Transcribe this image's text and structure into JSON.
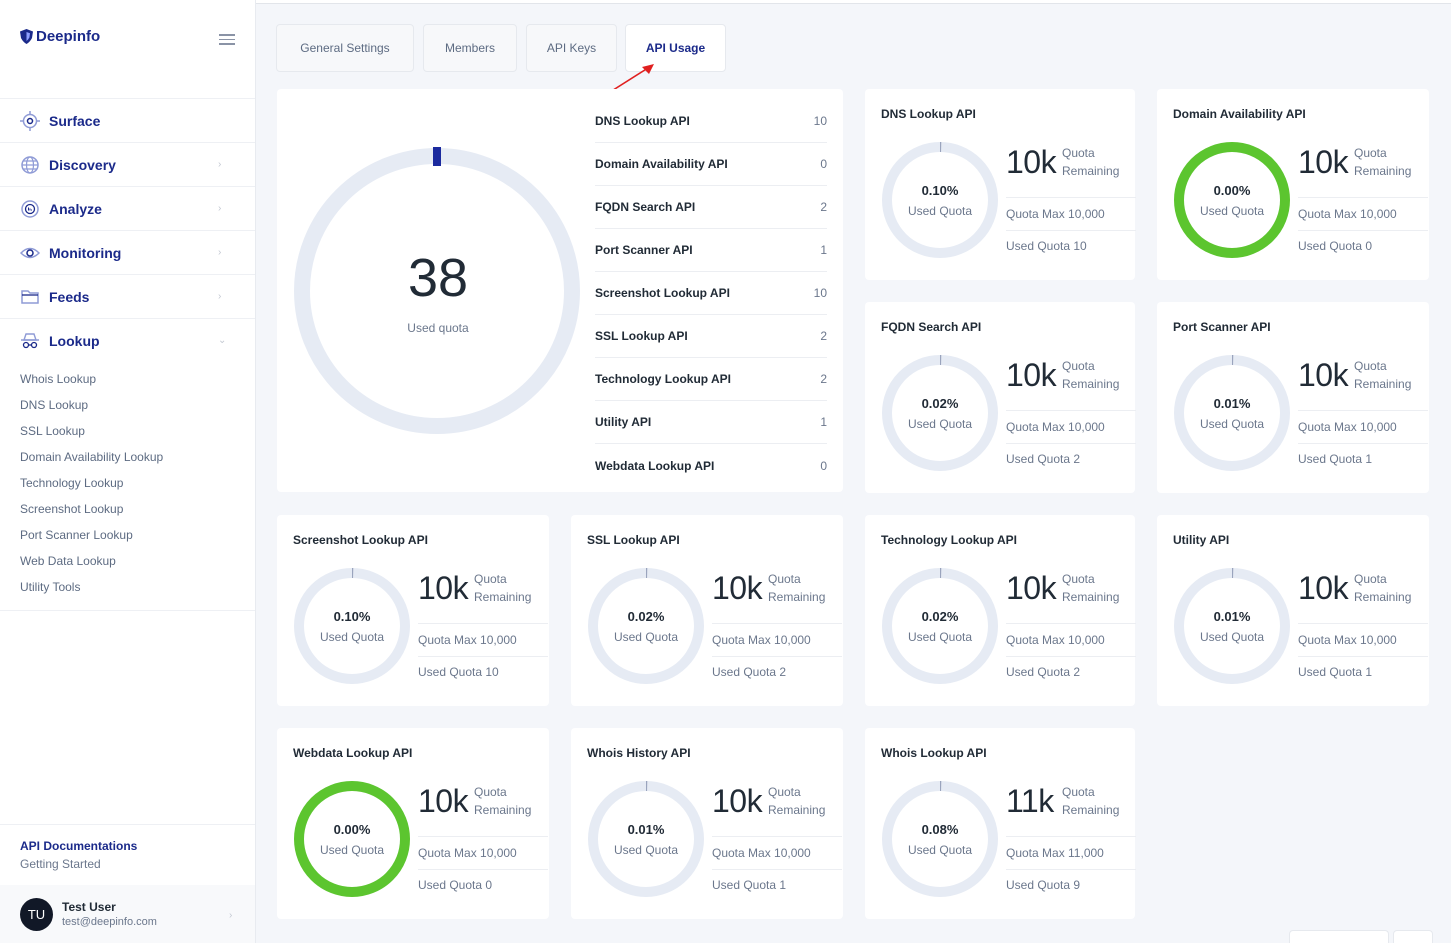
{
  "brand": {
    "name": "Deepinfo"
  },
  "nav": {
    "items": [
      {
        "label": "Surface",
        "icon": "target-icon"
      },
      {
        "label": "Discovery",
        "icon": "globe-icon"
      },
      {
        "label": "Analyze",
        "icon": "analyze-icon"
      },
      {
        "label": "Monitoring",
        "icon": "eye-icon"
      },
      {
        "label": "Feeds",
        "icon": "folder-icon"
      },
      {
        "label": "Lookup",
        "icon": "spy-icon"
      }
    ],
    "lookup_sub": [
      "Whois Lookup",
      "DNS Lookup",
      "SSL Lookup",
      "Domain Availability Lookup",
      "Technology Lookup",
      "Screenshot Lookup",
      "Port Scanner Lookup",
      "Web Data Lookup",
      "Utility Tools"
    ]
  },
  "docs": {
    "title": "API Documentations",
    "link": "Getting Started"
  },
  "user": {
    "initials": "TU",
    "name": "Test User",
    "email": "test@deepinfo.com"
  },
  "tabs": [
    {
      "label": "General Settings",
      "active": false
    },
    {
      "label": "Members",
      "active": false
    },
    {
      "label": "API Keys",
      "active": false
    },
    {
      "label": "API Usage",
      "active": true
    }
  ],
  "summary": {
    "total": "38",
    "label": "Used quota",
    "rows": [
      {
        "name": "DNS Lookup API",
        "value": "10"
      },
      {
        "name": "Domain Availability API",
        "value": "0"
      },
      {
        "name": "FQDN Search API",
        "value": "2"
      },
      {
        "name": "Port Scanner API",
        "value": "1"
      },
      {
        "name": "Screenshot Lookup API",
        "value": "10"
      },
      {
        "name": "SSL Lookup API",
        "value": "2"
      },
      {
        "name": "Technology Lookup API",
        "value": "2"
      },
      {
        "name": "Utility API",
        "value": "1"
      },
      {
        "name": "Webdata Lookup API",
        "value": "0"
      }
    ]
  },
  "labels": {
    "used_quota": "Used Quota",
    "quota": "Quota",
    "remaining": "Remaining"
  },
  "cards": [
    {
      "title": "DNS Lookup API",
      "pct": "0.10%",
      "fraction": 0.001,
      "remaining": "10k",
      "max": "Quota Max 10,000",
      "used": "Used Quota 10",
      "full_green": false
    },
    {
      "title": "Domain Availability API",
      "pct": "0.00%",
      "fraction": 0,
      "remaining": "10k",
      "max": "Quota Max 10,000",
      "used": "Used Quota 0",
      "full_green": true
    },
    {
      "title": "FQDN Search API",
      "pct": "0.02%",
      "fraction": 0.0002,
      "remaining": "10k",
      "max": "Quota Max 10,000",
      "used": "Used Quota 2",
      "full_green": false
    },
    {
      "title": "Port Scanner API",
      "pct": "0.01%",
      "fraction": 0.0001,
      "remaining": "10k",
      "max": "Quota Max 10,000",
      "used": "Used Quota 1",
      "full_green": false
    },
    {
      "title": "Screenshot Lookup API",
      "pct": "0.10%",
      "fraction": 0.001,
      "remaining": "10k",
      "max": "Quota Max 10,000",
      "used": "Used Quota 10",
      "full_green": false
    },
    {
      "title": "SSL Lookup API",
      "pct": "0.02%",
      "fraction": 0.0002,
      "remaining": "10k",
      "max": "Quota Max 10,000",
      "used": "Used Quota 2",
      "full_green": false
    },
    {
      "title": "Technology Lookup API",
      "pct": "0.02%",
      "fraction": 0.0002,
      "remaining": "10k",
      "max": "Quota Max 10,000",
      "used": "Used Quota 2",
      "full_green": false
    },
    {
      "title": "Utility API",
      "pct": "0.01%",
      "fraction": 0.0001,
      "remaining": "10k",
      "max": "Quota Max 10,000",
      "used": "Used Quota 1",
      "full_green": false
    },
    {
      "title": "Webdata Lookup API",
      "pct": "0.00%",
      "fraction": 0,
      "remaining": "10k",
      "max": "Quota Max 10,000",
      "used": "Used Quota 0",
      "full_green": true
    },
    {
      "title": "Whois History API",
      "pct": "0.01%",
      "fraction": 0.0001,
      "remaining": "10k",
      "max": "Quota Max 10,000",
      "used": "Used Quota 1",
      "full_green": false
    },
    {
      "title": "Whois Lookup API",
      "pct": "0.08%",
      "fraction": 0.0008,
      "remaining": "11k",
      "max": "Quota Max 11,000",
      "used": "Used Quota 9",
      "full_green": false
    }
  ],
  "colors": {
    "brand": "#1b2a8a",
    "ring_track": "#e6ebf4",
    "ring_green": "#5cc52f",
    "accent_red": "#e02020"
  }
}
